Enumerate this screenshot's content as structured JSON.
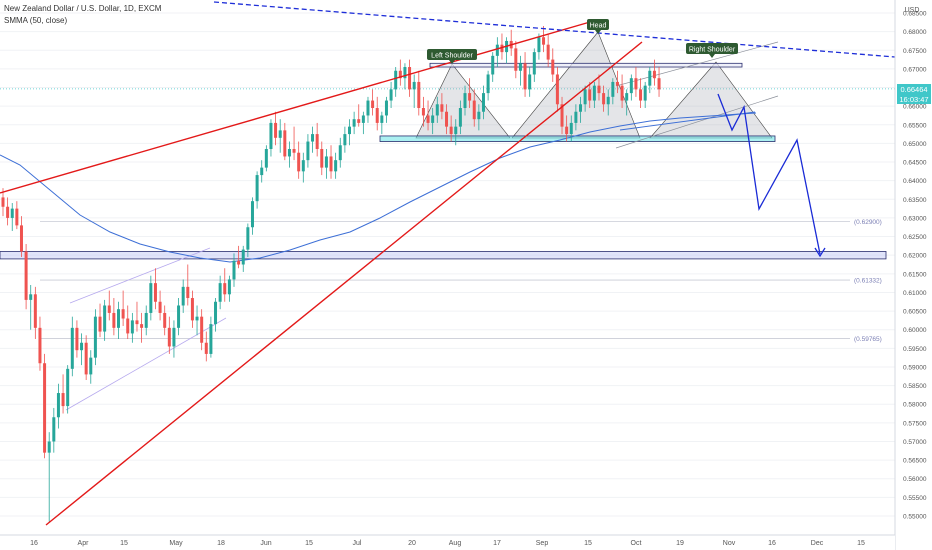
{
  "legend": {
    "symbol_line": "New Zealand Dollar / U.S. Dollar, 1D, EXCM",
    "indicator_line": "SMMA (50, close)"
  },
  "price_axis": {
    "currency": "USD",
    "last_price": "0.66464",
    "countdown": "16:03:47"
  },
  "chart_data": {
    "type": "candlestick",
    "ylim": [
      0.545,
      0.6865
    ],
    "y_ticks": [
      "0.55000",
      "0.55500",
      "0.56000",
      "0.56500",
      "0.57000",
      "0.57500",
      "0.58000",
      "0.58500",
      "0.59000",
      "0.59500",
      "0.60000",
      "0.60500",
      "0.61000",
      "0.61500",
      "0.62000",
      "0.62500",
      "0.63000",
      "0.63500",
      "0.64000",
      "0.64500",
      "0.65000",
      "0.65500",
      "0.66000",
      "0.66500",
      "0.67000",
      "0.67500",
      "0.68000",
      "0.68500"
    ],
    "x_ticks": [
      "16",
      "Apr",
      "15",
      "May",
      "18",
      "Jun",
      "15",
      "Jul",
      "20",
      "Aug",
      "17",
      "Sep",
      "15",
      "Oct",
      "19",
      "Nov",
      "16",
      "Dec",
      "15"
    ],
    "annotations": {
      "left_shoulder": "Left Shoulder",
      "head": "Head",
      "right_shoulder": "Right Shoulder"
    },
    "levels": {
      "upper": "(0.62900)",
      "middle": "(0.61332)",
      "lower": "(0.59765)"
    },
    "colors": {
      "up": "#26a69a",
      "down": "#ef5350",
      "trend_red": "#e31919",
      "dashed_blue": "#1e2ed8",
      "projection_blue": "#1a2bd6",
      "smma": "#3d6fd6",
      "neckline_box": "#66e3e6",
      "support_box": "#c9cdf6"
    },
    "ohlc": [
      [
        0.6355,
        0.638,
        0.6305,
        0.633
      ],
      [
        0.633,
        0.6355,
        0.628,
        0.63
      ],
      [
        0.63,
        0.634,
        0.6265,
        0.6325
      ],
      [
        0.6325,
        0.6345,
        0.627,
        0.628
      ],
      [
        0.628,
        0.6305,
        0.6195,
        0.621
      ],
      [
        0.621,
        0.623,
        0.6055,
        0.608
      ],
      [
        0.608,
        0.612,
        0.6,
        0.6095
      ],
      [
        0.6095,
        0.6115,
        0.5975,
        0.6005
      ],
      [
        0.6005,
        0.6035,
        0.589,
        0.591
      ],
      [
        0.591,
        0.5935,
        0.5655,
        0.567
      ],
      [
        0.567,
        0.5725,
        0.5485,
        0.57
      ],
      [
        0.57,
        0.579,
        0.567,
        0.5765
      ],
      [
        0.5765,
        0.5855,
        0.5735,
        0.583
      ],
      [
        0.583,
        0.588,
        0.5775,
        0.5795
      ],
      [
        0.5795,
        0.5905,
        0.5775,
        0.5895
      ],
      [
        0.5895,
        0.6035,
        0.5875,
        0.6005
      ],
      [
        0.6005,
        0.6025,
        0.5925,
        0.5945
      ],
      [
        0.5945,
        0.599,
        0.5905,
        0.5965
      ],
      [
        0.5965,
        0.5985,
        0.5865,
        0.588
      ],
      [
        0.588,
        0.5945,
        0.5855,
        0.5925
      ],
      [
        0.5925,
        0.6055,
        0.5905,
        0.6035
      ],
      [
        0.6035,
        0.607,
        0.598,
        0.5995
      ],
      [
        0.5995,
        0.608,
        0.597,
        0.6065
      ],
      [
        0.6065,
        0.6105,
        0.6025,
        0.6045
      ],
      [
        0.6045,
        0.6085,
        0.5985,
        0.6005
      ],
      [
        0.6005,
        0.6075,
        0.5975,
        0.6055
      ],
      [
        0.6055,
        0.6105,
        0.601,
        0.603
      ],
      [
        0.603,
        0.6065,
        0.5975,
        0.599
      ],
      [
        0.599,
        0.6045,
        0.5965,
        0.6025
      ],
      [
        0.6025,
        0.6075,
        0.5995,
        0.6015
      ],
      [
        0.6015,
        0.6045,
        0.5965,
        0.6005
      ],
      [
        0.6005,
        0.6065,
        0.5985,
        0.6045
      ],
      [
        0.6045,
        0.6145,
        0.6025,
        0.6125
      ],
      [
        0.6125,
        0.6165,
        0.6055,
        0.6075
      ],
      [
        0.6075,
        0.6105,
        0.6025,
        0.6045
      ],
      [
        0.6045,
        0.6065,
        0.5985,
        0.6005
      ],
      [
        0.6005,
        0.6035,
        0.5935,
        0.5955
      ],
      [
        0.5955,
        0.6025,
        0.5925,
        0.6005
      ],
      [
        0.6005,
        0.6085,
        0.5985,
        0.6065
      ],
      [
        0.6065,
        0.6135,
        0.6045,
        0.6115
      ],
      [
        0.6115,
        0.6175,
        0.6065,
        0.6085
      ],
      [
        0.6085,
        0.6105,
        0.6005,
        0.6025
      ],
      [
        0.6025,
        0.6065,
        0.5985,
        0.6035
      ],
      [
        0.6035,
        0.6055,
        0.5945,
        0.5965
      ],
      [
        0.5965,
        0.5995,
        0.5915,
        0.5935
      ],
      [
        0.5935,
        0.6035,
        0.5925,
        0.6015
      ],
      [
        0.6015,
        0.6085,
        0.5995,
        0.6075
      ],
      [
        0.6075,
        0.6145,
        0.6055,
        0.6125
      ],
      [
        0.6125,
        0.6165,
        0.6075,
        0.6095
      ],
      [
        0.6095,
        0.6145,
        0.6075,
        0.6135
      ],
      [
        0.6135,
        0.6205,
        0.6115,
        0.6185
      ],
      [
        0.6185,
        0.6225,
        0.6165,
        0.6175
      ],
      [
        0.6175,
        0.6225,
        0.6155,
        0.6215
      ],
      [
        0.6215,
        0.6285,
        0.6195,
        0.6275
      ],
      [
        0.6275,
        0.6355,
        0.6255,
        0.6345
      ],
      [
        0.6345,
        0.6425,
        0.6325,
        0.6415
      ],
      [
        0.6415,
        0.6455,
        0.6395,
        0.6435
      ],
      [
        0.6435,
        0.6495,
        0.6425,
        0.6485
      ],
      [
        0.6485,
        0.6565,
        0.6465,
        0.6555
      ],
      [
        0.6555,
        0.6585,
        0.6495,
        0.6515
      ],
      [
        0.6515,
        0.6565,
        0.6475,
        0.6535
      ],
      [
        0.6535,
        0.6555,
        0.6455,
        0.6465
      ],
      [
        0.6465,
        0.6505,
        0.6435,
        0.6485
      ],
      [
        0.6485,
        0.6545,
        0.6455,
        0.6475
      ],
      [
        0.6475,
        0.6505,
        0.6405,
        0.6425
      ],
      [
        0.6425,
        0.6475,
        0.6395,
        0.6455
      ],
      [
        0.6455,
        0.6525,
        0.6435,
        0.6505
      ],
      [
        0.6505,
        0.6545,
        0.6475,
        0.6525
      ],
      [
        0.6525,
        0.6555,
        0.6465,
        0.6485
      ],
      [
        0.6485,
        0.6505,
        0.6415,
        0.6435
      ],
      [
        0.6435,
        0.6485,
        0.6405,
        0.6465
      ],
      [
        0.6465,
        0.6495,
        0.6405,
        0.6425
      ],
      [
        0.6425,
        0.6475,
        0.6405,
        0.6455
      ],
      [
        0.6455,
        0.6515,
        0.6435,
        0.6495
      ],
      [
        0.6495,
        0.6545,
        0.6475,
        0.6525
      ],
      [
        0.6525,
        0.6565,
        0.6495,
        0.6545
      ],
      [
        0.6545,
        0.6585,
        0.6525,
        0.6565
      ],
      [
        0.6565,
        0.6605,
        0.6545,
        0.6555
      ],
      [
        0.6555,
        0.6585,
        0.6525,
        0.6575
      ],
      [
        0.6575,
        0.6625,
        0.6555,
        0.6615
      ],
      [
        0.6615,
        0.6645,
        0.6575,
        0.6595
      ],
      [
        0.6595,
        0.6625,
        0.6535,
        0.6555
      ],
      [
        0.6555,
        0.6585,
        0.6525,
        0.6575
      ],
      [
        0.6575,
        0.6625,
        0.6555,
        0.6615
      ],
      [
        0.6615,
        0.6665,
        0.6595,
        0.6645
      ],
      [
        0.6645,
        0.6705,
        0.6625,
        0.6695
      ],
      [
        0.6695,
        0.6725,
        0.6655,
        0.6675
      ],
      [
        0.6675,
        0.6715,
        0.6645,
        0.6705
      ],
      [
        0.6705,
        0.6725,
        0.6625,
        0.6645
      ],
      [
        0.6645,
        0.6685,
        0.6595,
        0.6665
      ],
      [
        0.6665,
        0.6695,
        0.6575,
        0.6595
      ],
      [
        0.6595,
        0.6625,
        0.6545,
        0.6575
      ],
      [
        0.6575,
        0.6615,
        0.6535,
        0.6555
      ],
      [
        0.6555,
        0.6595,
        0.6525,
        0.6575
      ],
      [
        0.6575,
        0.6625,
        0.6555,
        0.6605
      ],
      [
        0.6605,
        0.6635,
        0.6565,
        0.6585
      ],
      [
        0.6585,
        0.6605,
        0.6525,
        0.6545
      ],
      [
        0.6545,
        0.6575,
        0.6505,
        0.6525
      ],
      [
        0.6525,
        0.6565,
        0.6495,
        0.6545
      ],
      [
        0.6545,
        0.6615,
        0.6525,
        0.6595
      ],
      [
        0.6595,
        0.6655,
        0.6575,
        0.6635
      ],
      [
        0.6635,
        0.6675,
        0.6595,
        0.6615
      ],
      [
        0.6615,
        0.6645,
        0.6545,
        0.6565
      ],
      [
        0.6565,
        0.6605,
        0.6535,
        0.6585
      ],
      [
        0.6585,
        0.6655,
        0.6565,
        0.6635
      ],
      [
        0.6635,
        0.6695,
        0.6615,
        0.6685
      ],
      [
        0.6685,
        0.6745,
        0.6665,
        0.6735
      ],
      [
        0.6735,
        0.6785,
        0.6705,
        0.6765
      ],
      [
        0.6765,
        0.6795,
        0.6725,
        0.6745
      ],
      [
        0.6745,
        0.6785,
        0.6715,
        0.6775
      ],
      [
        0.6775,
        0.6805,
        0.6735,
        0.6755
      ],
      [
        0.6755,
        0.6775,
        0.6675,
        0.6695
      ],
      [
        0.6695,
        0.6735,
        0.6655,
        0.6715
      ],
      [
        0.6715,
        0.6745,
        0.6625,
        0.6645
      ],
      [
        0.6645,
        0.6705,
        0.6625,
        0.6685
      ],
      [
        0.6685,
        0.6755,
        0.6665,
        0.6745
      ],
      [
        0.6745,
        0.6795,
        0.6725,
        0.6785
      ],
      [
        0.6785,
        0.6815,
        0.6745,
        0.6765
      ],
      [
        0.6765,
        0.6795,
        0.6705,
        0.6725
      ],
      [
        0.6725,
        0.6755,
        0.6665,
        0.6685
      ],
      [
        0.6685,
        0.6705,
        0.6585,
        0.6605
      ],
      [
        0.6605,
        0.6625,
        0.6525,
        0.6545
      ],
      [
        0.6545,
        0.6575,
        0.6505,
        0.6525
      ],
      [
        0.6525,
        0.6575,
        0.6505,
        0.6555
      ],
      [
        0.6555,
        0.6605,
        0.6535,
        0.6585
      ],
      [
        0.6585,
        0.6625,
        0.6555,
        0.6605
      ],
      [
        0.6605,
        0.6655,
        0.6585,
        0.6645
      ],
      [
        0.6645,
        0.6665,
        0.6595,
        0.6615
      ],
      [
        0.6615,
        0.6665,
        0.6595,
        0.6655
      ],
      [
        0.6655,
        0.6685,
        0.6615,
        0.6635
      ],
      [
        0.6635,
        0.6655,
        0.6585,
        0.6605
      ],
      [
        0.6605,
        0.6645,
        0.6575,
        0.6625
      ],
      [
        0.6625,
        0.6675,
        0.6605,
        0.6665
      ],
      [
        0.6665,
        0.6695,
        0.6635,
        0.6655
      ],
      [
        0.6655,
        0.6685,
        0.6595,
        0.6615
      ],
      [
        0.6615,
        0.6645,
        0.6575,
        0.6635
      ],
      [
        0.6635,
        0.6685,
        0.6615,
        0.6675
      ],
      [
        0.6675,
        0.6705,
        0.6625,
        0.6645
      ],
      [
        0.6645,
        0.6675,
        0.6595,
        0.6615
      ],
      [
        0.6615,
        0.6665,
        0.6595,
        0.6655
      ],
      [
        0.6655,
        0.6705,
        0.6635,
        0.6695
      ],
      [
        0.6695,
        0.6725,
        0.6655,
        0.6675
      ],
      [
        0.6675,
        0.6705,
        0.6625,
        0.6645
      ]
    ]
  }
}
